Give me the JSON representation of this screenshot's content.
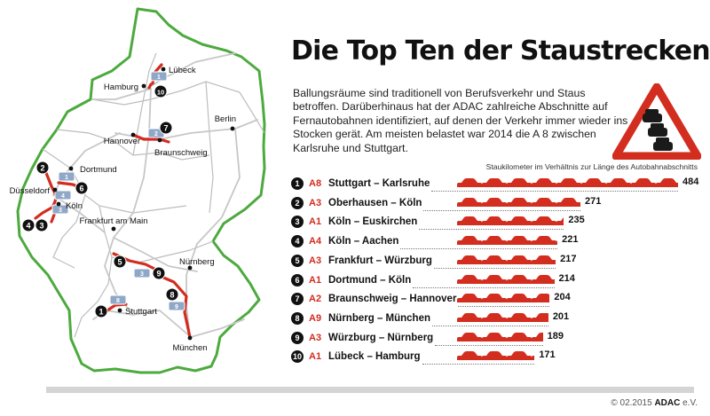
{
  "header": {
    "title": "Die Top Ten der Staustrecken",
    "intro": "Ballungsräume sind traditionell von Berufsverkehr und Staus betroffen. Darüberhinaus hat der ADAC zahlreiche Abschnitte auf Fernautobahnen identifiziert, auf denen der Verkehr immer wieder ins Stocken gerät. Am meisten belastet war 2014 die A 8 zwischen Karlsruhe und Stuttgart."
  },
  "colors": {
    "accent": "#d22d1e",
    "map_fill": "#ffffff",
    "border": "#4caa3e",
    "badge": "#111111"
  },
  "map": {
    "cities": [
      "Hamburg",
      "Lübeck",
      "Berlin",
      "Hannover",
      "Braunschweig",
      "Dortmund",
      "Düsseldorf",
      "Köln",
      "Frankfurt am Main",
      "Nürnberg",
      "Stuttgart",
      "München"
    ],
    "road_labels": [
      "1",
      "2",
      "1",
      "3",
      "4",
      "3",
      "8",
      "9"
    ],
    "markers": [
      "1",
      "2",
      "3",
      "4",
      "5",
      "6",
      "7",
      "8",
      "9",
      "10"
    ]
  },
  "chart_data": {
    "type": "bar",
    "title": "Die Top Ten der Staustrecken",
    "subtitle": "Staukilometer im Verhältnis zur Länge des Autobahnabschnitts",
    "categories": [
      "Stuttgart – Karlsruhe",
      "Oberhausen – Köln",
      "Köln – Euskirchen",
      "Köln – Aachen",
      "Frankfurt – Würzburg",
      "Dortmund – Köln",
      "Braunschweig – Hannover",
      "Nürnberg – München",
      "Würzburg – Nürnberg",
      "Lübeck – Hamburg"
    ],
    "ranks": [
      "1",
      "2",
      "3",
      "4",
      "5",
      "6",
      "7",
      "8",
      "9",
      "10"
    ],
    "roads": [
      "A8",
      "A3",
      "A1",
      "A4",
      "A3",
      "A1",
      "A2",
      "A9",
      "A3",
      "A1"
    ],
    "values": [
      484,
      271,
      235,
      221,
      217,
      214,
      204,
      201,
      189,
      171
    ],
    "xlim": [
      0,
      484
    ]
  },
  "footer": {
    "copyright": "© 02.2015",
    "brand": "ADAC",
    "suffix": " e.V."
  }
}
